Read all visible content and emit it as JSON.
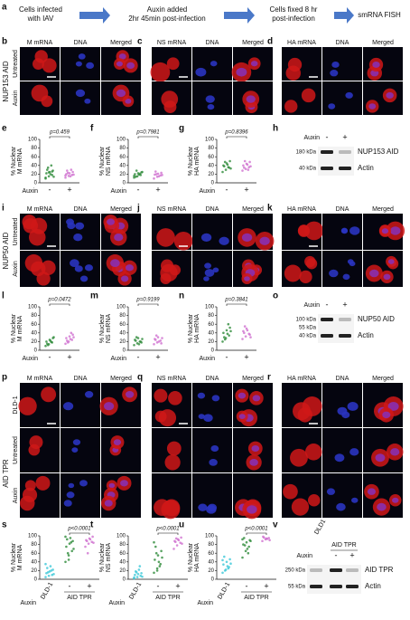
{
  "flow": {
    "letter": "a",
    "steps": [
      [
        "Cells infected",
        "with IAV"
      ],
      [
        "Auxin added",
        "2hr 45min post-infection"
      ],
      [
        "Cells fixed 8 hr",
        "post-infection"
      ],
      [
        "smRNA FISH"
      ]
    ]
  },
  "image_sets": [
    {
      "protein": "NUP153 AID",
      "rows": [
        "Untreated",
        "Auxin"
      ],
      "panels": [
        {
          "letter": "b",
          "headers": [
            "M mRNA",
            "DNA",
            "Merged"
          ]
        },
        {
          "letter": "c",
          "headers": [
            "NS mRNA",
            "DNA",
            "Merged"
          ]
        },
        {
          "letter": "d",
          "headers": [
            "HA mRNA",
            "DNA",
            "Merged"
          ]
        }
      ]
    },
    {
      "protein": "NUP50 AID",
      "rows": [
        "Untreated",
        "Auxin"
      ],
      "panels": [
        {
          "letter": "i",
          "headers": [
            "M mRNA",
            "DNA",
            "Merged"
          ]
        },
        {
          "letter": "j",
          "headers": [
            "NS mRNA",
            "DNA",
            "Merged"
          ]
        },
        {
          "letter": "k",
          "headers": [
            "HA mRNA",
            "DNA",
            "Merged"
          ]
        }
      ]
    },
    {
      "cell_line": "DLD-1",
      "protein": "AID TPR",
      "rows": [
        "Untreated",
        "Auxin"
      ],
      "panels": [
        {
          "letter": "p",
          "headers": [
            "M mRNA",
            "DNA",
            "Merged"
          ]
        },
        {
          "letter": "q",
          "headers": [
            "NS mRNA",
            "DNA",
            "Merged"
          ]
        },
        {
          "letter": "r",
          "headers": [
            "HA mRNA",
            "DNA",
            "Merged"
          ]
        }
      ]
    }
  ],
  "plot_sets": [
    {
      "plots": [
        {
          "letter": "e",
          "ylabel": [
            "% Nuclear",
            "M mRNA"
          ],
          "p": "p=0.459",
          "xlabel": "Auxin",
          "ylim": [
            0,
            100
          ],
          "yticks": [
            0,
            20,
            40,
            60,
            80,
            100
          ],
          "groups": [
            {
              "label": "-",
              "color": "#2e8b3a",
              "values": [
                10,
                15,
                18,
                22,
                25,
                28,
                30,
                20,
                14,
                35,
                40,
                12,
                24,
                26
              ]
            },
            {
              "label": "+",
              "color": "#d070d0",
              "values": [
                12,
                16,
                18,
                20,
                22,
                25,
                28,
                15,
                19,
                23,
                30,
                17
              ]
            }
          ]
        },
        {
          "letter": "f",
          "ylabel": [
            "% Nuclear",
            "NS mRNA"
          ],
          "p": "p=0.7981",
          "xlabel": "Auxin",
          "ylim": [
            0,
            100
          ],
          "yticks": [
            0,
            20,
            40,
            60,
            80,
            100
          ],
          "groups": [
            {
              "label": "-",
              "color": "#2e8b3a",
              "values": [
                12,
                15,
                18,
                20,
                22,
                24,
                14,
                19,
                25,
                28,
                21,
                16
              ]
            },
            {
              "label": "+",
              "color": "#d070d0",
              "values": [
                10,
                14,
                17,
                19,
                21,
                23,
                26,
                15,
                18,
                20
              ]
            }
          ]
        },
        {
          "letter": "g",
          "ylabel": [
            "% Nuclear",
            "HA mRNA"
          ],
          "p": "p=0.8396",
          "xlabel": "Auxin",
          "ylim": [
            0,
            100
          ],
          "yticks": [
            0,
            20,
            40,
            60,
            80,
            100
          ],
          "groups": [
            {
              "label": "-",
              "color": "#2e8b3a",
              "values": [
                25,
                30,
                35,
                40,
                45,
                50,
                38,
                42,
                33,
                48,
                36
              ]
            },
            {
              "label": "+",
              "color": "#d070d0",
              "values": [
                28,
                32,
                36,
                40,
                44,
                48,
                35,
                42,
                38,
                50,
                30
              ]
            }
          ]
        }
      ],
      "blot": {
        "letter": "h",
        "treatment": "Auxin",
        "lanes": [
          "-",
          "+"
        ],
        "markers": [
          "180 kDa",
          "40 kDa"
        ],
        "bands": [
          "NUP153 AID",
          "Actin"
        ]
      }
    },
    {
      "plots": [
        {
          "letter": "l",
          "ylabel": [
            "% Nuclear",
            "M mRNA"
          ],
          "p": "p=0.0472",
          "xlabel": "Auxin",
          "ylim": [
            0,
            100
          ],
          "yticks": [
            0,
            20,
            40,
            60,
            80,
            100
          ],
          "groups": [
            {
              "label": "-",
              "color": "#2e8b3a",
              "values": [
                10,
                14,
                18,
                20,
                24,
                28,
                15,
                22,
                30,
                12,
                19
              ]
            },
            {
              "label": "+",
              "color": "#d070d0",
              "values": [
                15,
                20,
                24,
                28,
                32,
                36,
                22,
                26,
                30,
                18,
                40
              ]
            }
          ]
        },
        {
          "letter": "m",
          "ylabel": [
            "% Nuclear",
            "NS mRNA"
          ],
          "p": "p=0.9199",
          "xlabel": "Auxin",
          "ylim": [
            0,
            100
          ],
          "yticks": [
            0,
            20,
            40,
            60,
            80,
            100
          ],
          "groups": [
            {
              "label": "-",
              "color": "#2e8b3a",
              "values": [
                12,
                16,
                20,
                24,
                28,
                18,
                22,
                14,
                26,
                30,
                20
              ]
            },
            {
              "label": "+",
              "color": "#d070d0",
              "values": [
                14,
                18,
                22,
                26,
                30,
                16,
                24,
                20,
                28,
                34
              ]
            }
          ]
        },
        {
          "letter": "n",
          "ylabel": [
            "% Nuclear",
            "HA mRNA"
          ],
          "p": "p=0.3841",
          "xlabel": "Auxin",
          "ylim": [
            0,
            100
          ],
          "yticks": [
            0,
            20,
            40,
            60,
            80,
            100
          ],
          "groups": [
            {
              "label": "-",
              "color": "#2e8b3a",
              "values": [
                20,
                28,
                34,
                40,
                46,
                52,
                30,
                38,
                44,
                25,
                60
              ]
            },
            {
              "label": "+",
              "color": "#d070d0",
              "values": [
                26,
                32,
                38,
                44,
                50,
                36,
                40,
                46,
                30,
                55
              ]
            }
          ]
        }
      ],
      "blot": {
        "letter": "o",
        "treatment": "Auxin",
        "lanes": [
          "-",
          "+"
        ],
        "markers": [
          "100 kDa",
          "55 kDa",
          "40 kDa"
        ],
        "bands": [
          "NUP50 AID",
          "Actin"
        ]
      }
    },
    {
      "plots": [
        {
          "letter": "s",
          "ylabel": [
            "% Nuclear",
            "M mRNA"
          ],
          "p": "p<0.0001",
          "xlabel": "Auxin",
          "group_label": "AID TPR",
          "ylim": [
            0,
            100
          ],
          "yticks": [
            0,
            20,
            40,
            60,
            80,
            100
          ],
          "groups": [
            {
              "label": "DLD-1",
              "color": "#3cc8d8",
              "values": [
                5,
                8,
                10,
                14,
                18,
                22,
                26,
                30,
                12,
                16,
                20,
                35
              ]
            },
            {
              "label": "-",
              "color": "#2e8b3a",
              "values": [
                40,
                55,
                65,
                75,
                82,
                88,
                92,
                95,
                70,
                60,
                85,
                98,
                45
              ]
            },
            {
              "label": "+",
              "color": "#d070d0",
              "values": [
                75,
                82,
                86,
                90,
                94,
                98,
                88,
                92,
                84,
                60
              ]
            }
          ]
        },
        {
          "letter": "t",
          "ylabel": [
            "% Nuclear",
            "NS mRNA"
          ],
          "p": "p<0.0001",
          "xlabel": "Auxin",
          "group_label": "AID TPR",
          "ylim": [
            0,
            100
          ],
          "yticks": [
            0,
            20,
            40,
            60,
            80,
            100
          ],
          "groups": [
            {
              "label": "DLD-1",
              "color": "#3cc8d8",
              "values": [
                2,
                5,
                8,
                10,
                12,
                14,
                18,
                22,
                6,
                16,
                30,
                4
              ]
            },
            {
              "label": "-",
              "color": "#2e8b3a",
              "values": [
                15,
                25,
                35,
                45,
                55,
                65,
                75,
                40,
                50,
                60,
                30,
                85,
                20
              ]
            },
            {
              "label": "+",
              "color": "#d070d0",
              "values": [
                70,
                78,
                84,
                88,
                92,
                96,
                86,
                90,
                82,
                94
              ]
            }
          ]
        },
        {
          "letter": "u",
          "ylabel": [
            "% Nuclear",
            "HA mRNA"
          ],
          "p": "p<0.0001",
          "xlabel": "Auxin",
          "group_label": "AID TPR",
          "ylim": [
            0,
            100
          ],
          "yticks": [
            0,
            20,
            40,
            60,
            80,
            100
          ],
          "groups": [
            {
              "label": "DLD-1",
              "color": "#3cc8d8",
              "values": [
                15,
                22,
                28,
                34,
                40,
                46,
                52,
                30,
                36,
                20,
                25,
                44
              ]
            },
            {
              "label": "-",
              "color": "#2e8b3a",
              "values": [
                50,
                65,
                75,
                80,
                85,
                90,
                95,
                70,
                88,
                78,
                60,
                92
              ]
            },
            {
              "label": "+",
              "color": "#d070d0",
              "values": [
                88,
                92,
                95,
                98,
                94,
                90,
                96,
                93
              ]
            }
          ]
        }
      ],
      "blot": {
        "letter": "v",
        "control": "DLD1",
        "group": "AID TPR",
        "treatment": "Auxin",
        "lanes": [
          "-",
          "+"
        ],
        "markers": [
          "250 kDa",
          "55 kDa"
        ],
        "bands": [
          "AID TPR",
          "Actin"
        ]
      }
    }
  ]
}
